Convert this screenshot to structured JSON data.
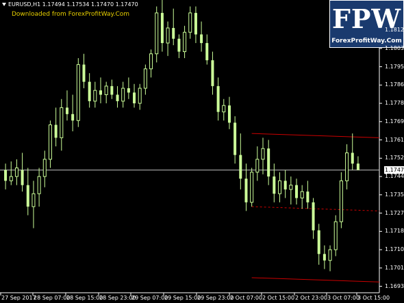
{
  "header": {
    "symbol_info": "EURUSD,H1  1.17494 1.17534 1.17470 1.17470",
    "download_note": "Downloaded from ForexProfitWay.Com"
  },
  "logo": {
    "letters": "FPW",
    "site": "ForexProfitWay.Com",
    "color": "#1a3a6e"
  },
  "colors": {
    "background": "#000000",
    "candle": "#ccff99",
    "channel": "#cc0000",
    "axis_text": "#ffffff",
    "note_text": "#e8d000"
  },
  "current_price": "1.17470",
  "price_axis": [
    "1.18120",
    "1.18035",
    "1.17950",
    "1.17865",
    "1.17780",
    "1.17695",
    "1.17610",
    "1.17525",
    "1.17440",
    "1.17355",
    "1.17270",
    "1.17185",
    "1.17100",
    "1.17015",
    "1.16930"
  ],
  "time_axis": [
    "27 Sep 2017",
    "28 Sep 07:00",
    "28 Sep 15:00",
    "28 Sep 23:00",
    "29 Sep 07:00",
    "29 Sep 15:00",
    "29 Sep 23:00",
    "2 Oct 07:00",
    "2 Oct 15:00",
    "2 Oct 23:00",
    "3 Oct 07:00",
    "3 Oct 15:00"
  ],
  "chart_data": {
    "type": "candlestick",
    "symbol": "EURUSD",
    "timeframe": "H1",
    "ylim": [
      1.169,
      1.1826
    ],
    "current_price": 1.1747,
    "candles": [
      [
        1.1747,
        1.175,
        1.1738,
        1.1742
      ],
      [
        1.1742,
        1.1751,
        1.174,
        1.1744
      ],
      [
        1.1744,
        1.1752,
        1.174,
        1.1748
      ],
      [
        1.1747,
        1.1755,
        1.1737,
        1.174
      ],
      [
        1.174,
        1.1748,
        1.1726,
        1.173
      ],
      [
        1.173,
        1.1742,
        1.172,
        1.1736
      ],
      [
        1.1736,
        1.1748,
        1.173,
        1.1744
      ],
      [
        1.1744,
        1.1756,
        1.1739,
        1.1752
      ],
      [
        1.1752,
        1.177,
        1.1748,
        1.1768
      ],
      [
        1.1768,
        1.1776,
        1.1758,
        1.1762
      ],
      [
        1.1762,
        1.178,
        1.1756,
        1.1776
      ],
      [
        1.1776,
        1.1784,
        1.177,
        1.1773
      ],
      [
        1.1773,
        1.1782,
        1.1765,
        1.177
      ],
      [
        1.177,
        1.1799,
        1.1767,
        1.1796
      ],
      [
        1.1796,
        1.1801,
        1.1785,
        1.1788
      ],
      [
        1.1788,
        1.1792,
        1.1776,
        1.1779
      ],
      [
        1.1779,
        1.1788,
        1.1776,
        1.1784
      ],
      [
        1.1784,
        1.179,
        1.1778,
        1.1782
      ],
      [
        1.1782,
        1.1788,
        1.1778,
        1.1786
      ],
      [
        1.1786,
        1.1789,
        1.178,
        1.1782
      ],
      [
        1.1782,
        1.1786,
        1.1776,
        1.1779
      ],
      [
        1.1779,
        1.1788,
        1.1776,
        1.1785
      ],
      [
        1.1785,
        1.179,
        1.178,
        1.1783
      ],
      [
        1.1783,
        1.1787,
        1.1776,
        1.1778
      ],
      [
        1.1778,
        1.1787,
        1.1775,
        1.1785
      ],
      [
        1.1785,
        1.1796,
        1.1782,
        1.1794
      ],
      [
        1.1794,
        1.1803,
        1.179,
        1.1801
      ],
      [
        1.1801,
        1.1823,
        1.1797,
        1.182
      ],
      [
        1.182,
        1.1826,
        1.1802,
        1.1806
      ],
      [
        1.1806,
        1.1816,
        1.18,
        1.1813
      ],
      [
        1.1813,
        1.1822,
        1.1805,
        1.1808
      ],
      [
        1.1808,
        1.181,
        1.1799,
        1.1802
      ],
      [
        1.1802,
        1.1814,
        1.1799,
        1.1811
      ],
      [
        1.1811,
        1.1823,
        1.1808,
        1.182
      ],
      [
        1.182,
        1.1823,
        1.1806,
        1.181
      ],
      [
        1.181,
        1.1816,
        1.1802,
        1.1806
      ],
      [
        1.1806,
        1.181,
        1.1796,
        1.1798
      ],
      [
        1.1798,
        1.1802,
        1.1782,
        1.1786
      ],
      [
        1.1786,
        1.179,
        1.177,
        1.1774
      ],
      [
        1.1774,
        1.178,
        1.177,
        1.1777
      ],
      [
        1.1777,
        1.1781,
        1.1766,
        1.1769
      ],
      [
        1.1769,
        1.1772,
        1.175,
        1.1754
      ],
      [
        1.1754,
        1.1764,
        1.1738,
        1.1743
      ],
      [
        1.1743,
        1.175,
        1.1728,
        1.1732
      ],
      [
        1.1732,
        1.1748,
        1.173,
        1.1746
      ],
      [
        1.1746,
        1.1758,
        1.1742,
        1.1752
      ],
      [
        1.1752,
        1.1762,
        1.1745,
        1.1757
      ],
      [
        1.1757,
        1.1761,
        1.174,
        1.1744
      ],
      [
        1.1744,
        1.175,
        1.1732,
        1.1736
      ],
      [
        1.1736,
        1.1746,
        1.1732,
        1.1742
      ],
      [
        1.1742,
        1.1747,
        1.1734,
        1.1738
      ],
      [
        1.1738,
        1.1744,
        1.1731,
        1.174
      ],
      [
        1.174,
        1.1743,
        1.1731,
        1.1734
      ],
      [
        1.1734,
        1.174,
        1.1729,
        1.1737
      ],
      [
        1.1737,
        1.1742,
        1.1729,
        1.1732
      ],
      [
        1.1732,
        1.1734,
        1.1715,
        1.1719
      ],
      [
        1.1719,
        1.1722,
        1.1703,
        1.1708
      ],
      [
        1.1708,
        1.1712,
        1.1701,
        1.1705
      ],
      [
        1.1705,
        1.1712,
        1.17,
        1.171
      ],
      [
        1.171,
        1.1726,
        1.1707,
        1.1723
      ],
      [
        1.1723,
        1.1746,
        1.172,
        1.1742
      ],
      [
        1.1742,
        1.1759,
        1.1738,
        1.1755
      ],
      [
        1.1755,
        1.1764,
        1.1747,
        1.175
      ],
      [
        1.175,
        1.17534,
        1.1747,
        1.1747
      ]
    ],
    "lines": [
      {
        "name": "channel-top",
        "style": "solid",
        "from": {
          "candle": 44,
          "price": 1.1764
        },
        "to": {
          "candle": 64,
          "price": 1.1762
        }
      },
      {
        "name": "channel-mid",
        "style": "dashed",
        "from": {
          "candle": 44,
          "price": 1.173
        },
        "to": {
          "candle": 64,
          "price": 1.1728
        }
      },
      {
        "name": "channel-bottom",
        "style": "solid",
        "from": {
          "candle": 44,
          "price": 1.1697
        },
        "to": {
          "candle": 64,
          "price": 1.1695
        }
      }
    ]
  }
}
